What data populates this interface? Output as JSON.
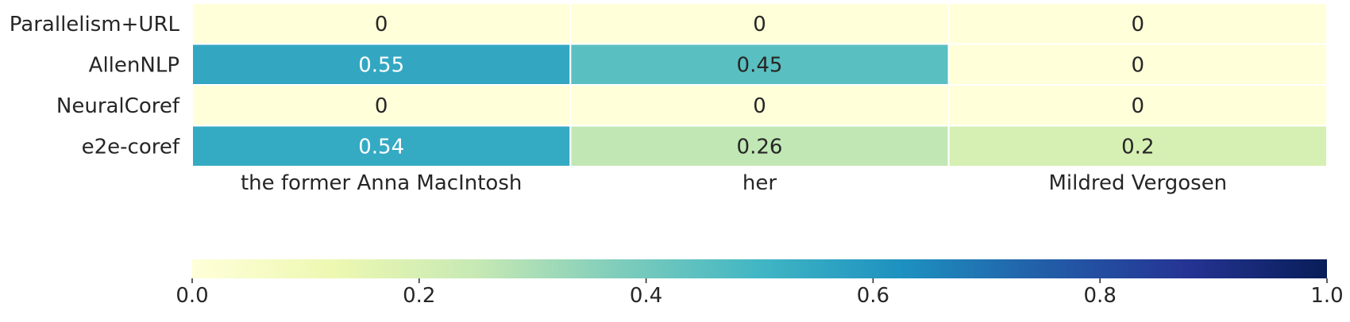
{
  "chart_data": {
    "type": "heatmap",
    "rows": [
      "Parallelism+URL",
      "AllenNLP",
      "NeuralCoref",
      "e2e-coref"
    ],
    "columns": [
      "the former Anna MacIntosh",
      "her",
      "Mildred Vergosen"
    ],
    "values": [
      [
        0,
        0,
        0
      ],
      [
        0.55,
        0.45,
        0
      ],
      [
        0,
        0,
        0
      ],
      [
        0.54,
        0.26,
        0.2
      ]
    ],
    "cell_labels": [
      [
        "0",
        "0",
        "0"
      ],
      [
        "0.55",
        "0.45",
        "0"
      ],
      [
        "0",
        "0",
        "0"
      ],
      [
        "0.54",
        "0.26",
        "0.2"
      ]
    ],
    "colormap": "YlGnBu",
    "vmin": 0.0,
    "vmax": 1.0,
    "colorbar": {
      "orientation": "horizontal",
      "placement": "bottom",
      "ticks": [
        0.0,
        0.2,
        0.4,
        0.6,
        0.8,
        1.0
      ],
      "tick_labels": [
        "0.0",
        "0.2",
        "0.4",
        "0.6",
        "0.8",
        "1.0"
      ]
    },
    "cell_border_color": "#ffffff",
    "text_color_dark": "#262626",
    "text_color_light": "#ffffff"
  }
}
